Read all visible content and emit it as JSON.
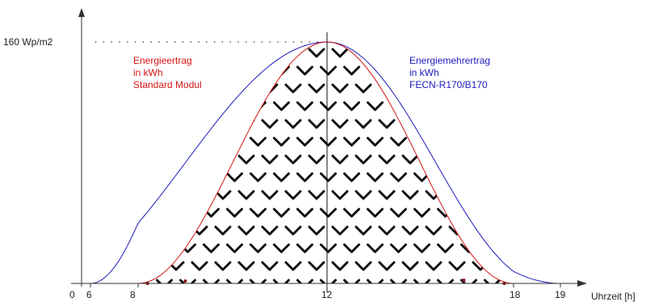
{
  "figure": {
    "y_label": "160 Wp/m2",
    "x_axis_label": "Uhrzeit [h]",
    "origin_label": "0",
    "x_ticks": [
      "6",
      "8",
      "12",
      "18",
      "19"
    ],
    "standard_label": [
      "Energieertrag",
      "in kWh",
      "Standard Modul"
    ],
    "fecn_label": [
      "Energiemehrertrag",
      "in kWh",
      "FECN-R170/B170"
    ],
    "colors": {
      "standard": "#d21414",
      "fecn": "#1b1bbb",
      "hatch": "#111111",
      "axis": "#333333"
    }
  },
  "chart_data": {
    "type": "area",
    "xlabel": "Uhrzeit [h]",
    "x_ticks": [
      0,
      6,
      8,
      12,
      18,
      19
    ],
    "ylabel": "160 Wp/m2",
    "ylim": [
      0,
      160
    ],
    "series": [
      {
        "name": "Energieertrag in kWh Standard Modul",
        "curve": "bell",
        "x_start": 8,
        "x_peak": 12,
        "x_end": 18,
        "peak": 160,
        "color": "#d21414",
        "fill": "chevron-hatch"
      },
      {
        "name": "Energiemehrertrag in kWh FECN-R170/B170",
        "curve": "bell",
        "x_start": 6,
        "x_peak": 12,
        "x_end": 19,
        "peak": 160,
        "color": "#1b1bbb"
      }
    ]
  }
}
